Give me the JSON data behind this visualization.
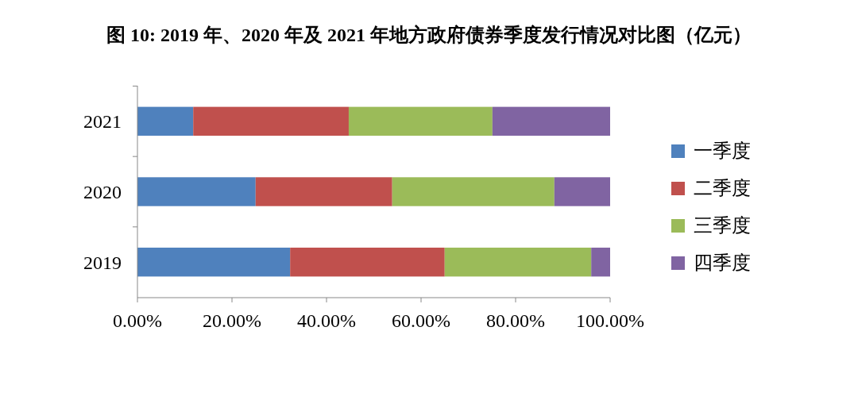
{
  "chart_data": {
    "type": "bar",
    "orientation": "horizontal",
    "stacked": true,
    "title": "图 10: 2019 年、2020 年及 2021 年地方政府债券季度发行情况对比图（亿元）",
    "categories": [
      "2021",
      "2020",
      "2019"
    ],
    "series": [
      {
        "name": "一季度",
        "color": "#4f81bd",
        "values": [
          11.8,
          25.0,
          32.3
        ]
      },
      {
        "name": "二季度",
        "color": "#c0504d",
        "values": [
          32.9,
          28.9,
          32.7
        ]
      },
      {
        "name": "三季度",
        "color": "#9bbb59",
        "values": [
          30.4,
          34.3,
          31.0
        ]
      },
      {
        "name": "四季度",
        "color": "#8064a2",
        "values": [
          24.9,
          11.8,
          4.0
        ]
      }
    ],
    "xlim": [
      0,
      100
    ],
    "xticks": [
      {
        "value": 0,
        "label": "0.00%"
      },
      {
        "value": 20,
        "label": "20.00%"
      },
      {
        "value": 40,
        "label": "40.00%"
      },
      {
        "value": 60,
        "label": "60.00%"
      },
      {
        "value": 80,
        "label": "80.00%"
      },
      {
        "value": 100,
        "label": "100.00%"
      }
    ],
    "grid": false,
    "legend": "right"
  }
}
